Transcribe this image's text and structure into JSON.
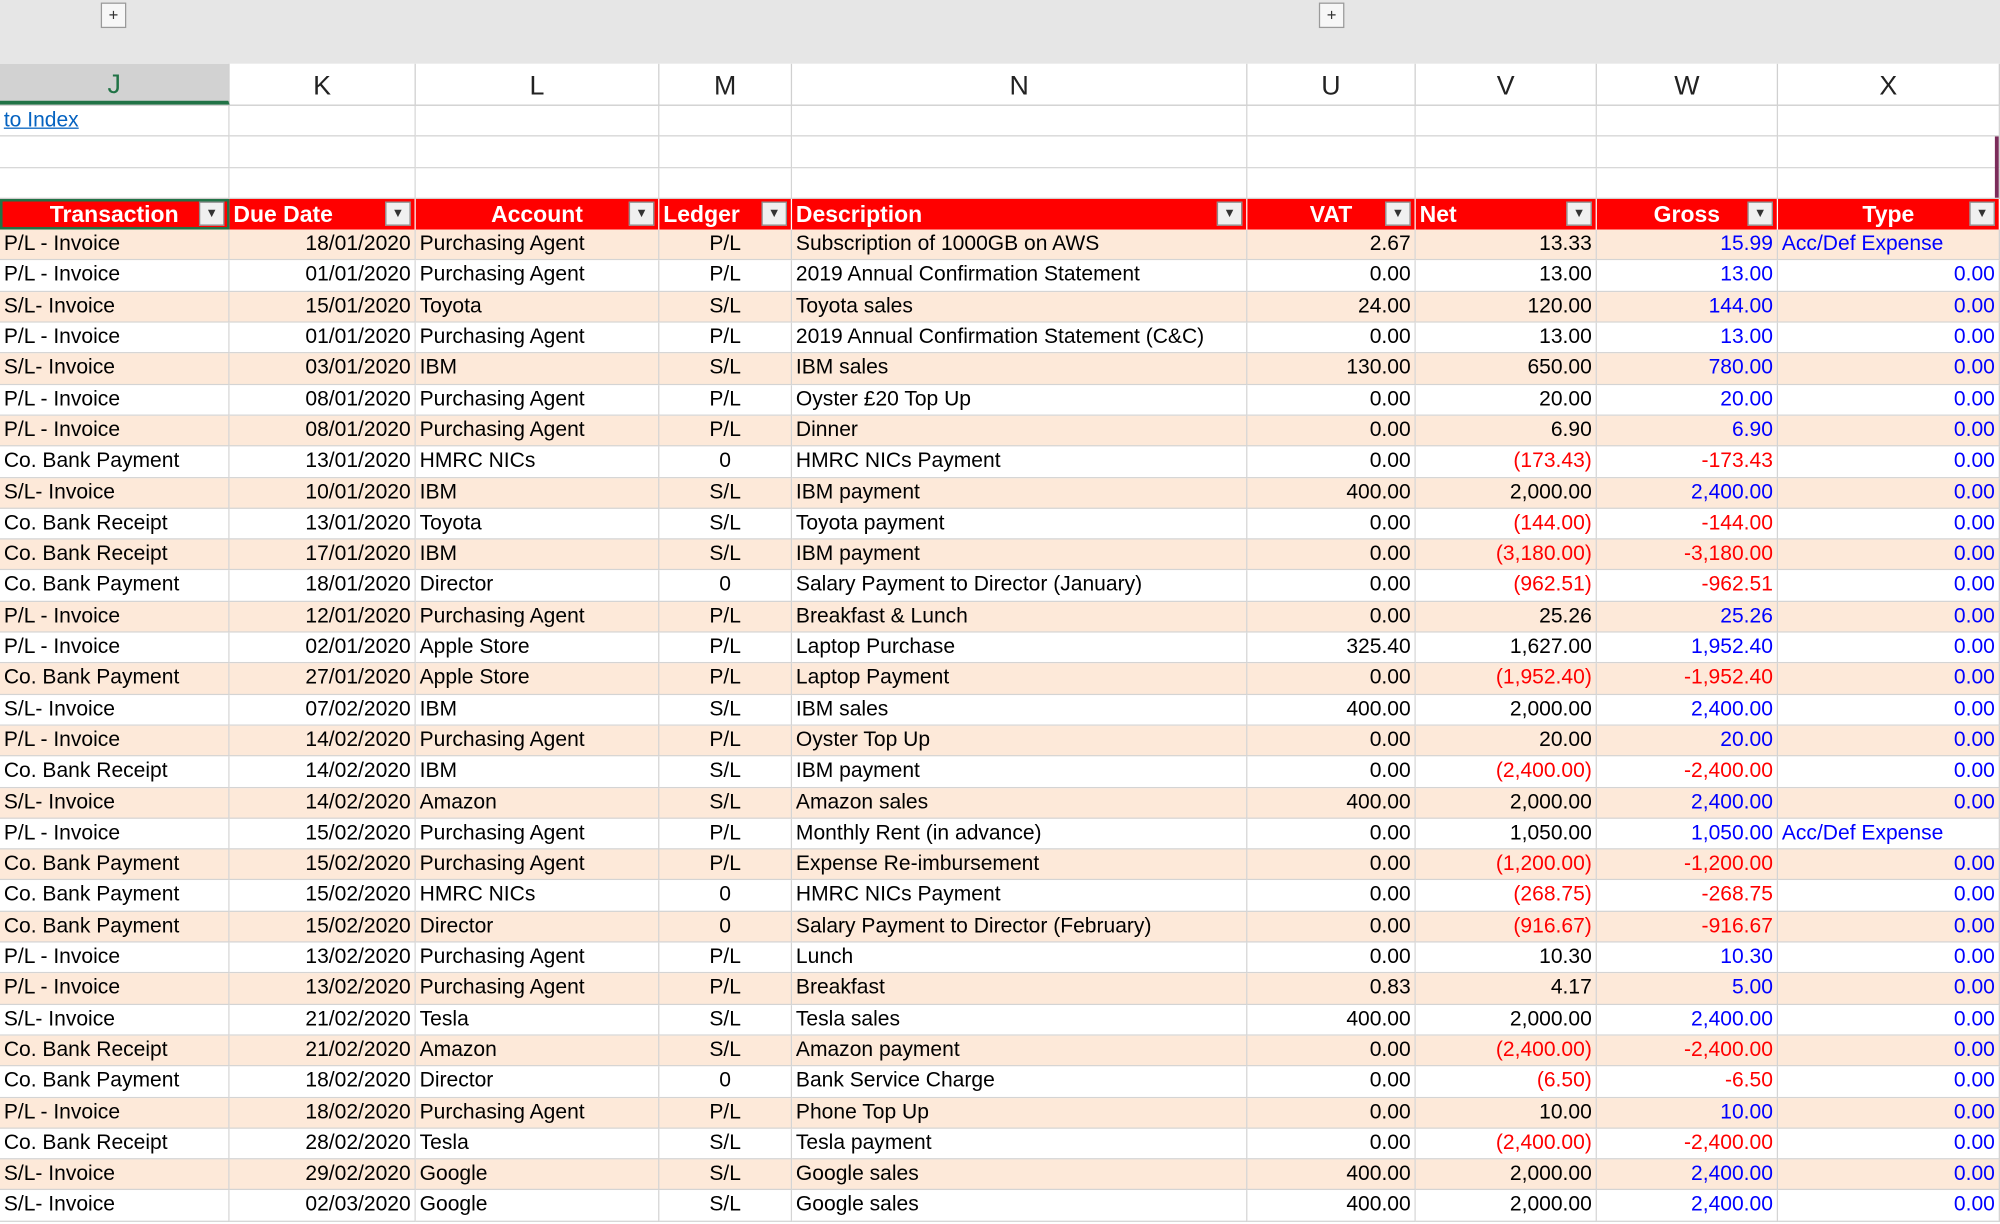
{
  "outline": {
    "group_button_1": "+",
    "group_button_2": "+"
  },
  "columns": [
    "J",
    "K",
    "L",
    "M",
    "N",
    "U",
    "V",
    "W",
    "X"
  ],
  "index_link": "to Index",
  "table": {
    "headers": [
      "Transaction",
      "Due Date",
      "Account",
      "Ledger",
      "Description",
      "VAT",
      "Net",
      "Gross",
      "Type"
    ],
    "filter_icon": "▼",
    "rows": [
      [
        "P/L - Invoice",
        "18/01/2020",
        "Purchasing Agent",
        "P/L",
        "Subscription of 1000GB on AWS",
        "2.67",
        "13.33",
        "15.99",
        "Acc/Def Expense"
      ],
      [
        "P/L - Invoice",
        "01/01/2020",
        "Purchasing Agent",
        "P/L",
        "2019 Annual Confirmation Statement",
        "0.00",
        "13.00",
        "13.00",
        "0.00"
      ],
      [
        "S/L- Invoice",
        "15/01/2020",
        "Toyota",
        "S/L",
        "Toyota sales",
        "24.00",
        "120.00",
        "144.00",
        "0.00"
      ],
      [
        "P/L - Invoice",
        "01/01/2020",
        "Purchasing Agent",
        "P/L",
        "2019 Annual Confirmation Statement (C&C)",
        "0.00",
        "13.00",
        "13.00",
        "0.00"
      ],
      [
        "S/L- Invoice",
        "03/01/2020",
        "IBM",
        "S/L",
        "IBM sales",
        "130.00",
        "650.00",
        "780.00",
        "0.00"
      ],
      [
        "P/L - Invoice",
        "08/01/2020",
        "Purchasing Agent",
        "P/L",
        "Oyster £20 Top Up",
        "0.00",
        "20.00",
        "20.00",
        "0.00"
      ],
      [
        "P/L - Invoice",
        "08/01/2020",
        "Purchasing Agent",
        "P/L",
        "Dinner",
        "0.00",
        "6.90",
        "6.90",
        "0.00"
      ],
      [
        "Co. Bank Payment",
        "13/01/2020",
        "HMRC NICs",
        "0",
        "HMRC NICs Payment",
        "0.00",
        "(173.43)",
        "-173.43",
        "0.00"
      ],
      [
        "S/L- Invoice",
        "10/01/2020",
        "IBM",
        "S/L",
        "IBM payment",
        "400.00",
        "2,000.00",
        "2,400.00",
        "0.00"
      ],
      [
        "Co. Bank Receipt",
        "13/01/2020",
        "Toyota",
        "S/L",
        "Toyota payment",
        "0.00",
        "(144.00)",
        "-144.00",
        "0.00"
      ],
      [
        "Co. Bank Receipt",
        "17/01/2020",
        "IBM",
        "S/L",
        "IBM payment",
        "0.00",
        "(3,180.00)",
        "-3,180.00",
        "0.00"
      ],
      [
        "Co. Bank Payment",
        "18/01/2020",
        "Director",
        "0",
        "Salary Payment to Director (January)",
        "0.00",
        "(962.51)",
        "-962.51",
        "0.00"
      ],
      [
        "P/L - Invoice",
        "12/01/2020",
        "Purchasing Agent",
        "P/L",
        "Breakfast & Lunch",
        "0.00",
        "25.26",
        "25.26",
        "0.00"
      ],
      [
        "P/L - Invoice",
        "02/01/2020",
        "Apple Store",
        "P/L",
        "Laptop Purchase",
        "325.40",
        "1,627.00",
        "1,952.40",
        "0.00"
      ],
      [
        "Co. Bank Payment",
        "27/01/2020",
        "Apple Store",
        "P/L",
        "Laptop Payment",
        "0.00",
        "(1,952.40)",
        "-1,952.40",
        "0.00"
      ],
      [
        "S/L- Invoice",
        "07/02/2020",
        "IBM",
        "S/L",
        "IBM sales",
        "400.00",
        "2,000.00",
        "2,400.00",
        "0.00"
      ],
      [
        "P/L - Invoice",
        "14/02/2020",
        "Purchasing Agent",
        "P/L",
        "Oyster Top Up",
        "0.00",
        "20.00",
        "20.00",
        "0.00"
      ],
      [
        "Co. Bank Receipt",
        "14/02/2020",
        "IBM",
        "S/L",
        "IBM payment",
        "0.00",
        "(2,400.00)",
        "-2,400.00",
        "0.00"
      ],
      [
        "S/L- Invoice",
        "14/02/2020",
        "Amazon",
        "S/L",
        "Amazon sales",
        "400.00",
        "2,000.00",
        "2,400.00",
        "0.00"
      ],
      [
        "P/L - Invoice",
        "15/02/2020",
        "Purchasing Agent",
        "P/L",
        "Monthly Rent (in advance)",
        "0.00",
        "1,050.00",
        "1,050.00",
        "Acc/Def Expense"
      ],
      [
        "Co. Bank Payment",
        "15/02/2020",
        "Purchasing Agent",
        "P/L",
        "Expense Re-imbursement",
        "0.00",
        "(1,200.00)",
        "-1,200.00",
        "0.00"
      ],
      [
        "Co. Bank Payment",
        "15/02/2020",
        "HMRC NICs",
        "0",
        "HMRC NICs Payment",
        "0.00",
        "(268.75)",
        "-268.75",
        "0.00"
      ],
      [
        "Co. Bank Payment",
        "15/02/2020",
        "Director",
        "0",
        "Salary Payment to Director (February)",
        "0.00",
        "(916.67)",
        "-916.67",
        "0.00"
      ],
      [
        "P/L - Invoice",
        "13/02/2020",
        "Purchasing Agent",
        "P/L",
        "Lunch",
        "0.00",
        "10.30",
        "10.30",
        "0.00"
      ],
      [
        "P/L - Invoice",
        "13/02/2020",
        "Purchasing Agent",
        "P/L",
        "Breakfast",
        "0.83",
        "4.17",
        "5.00",
        "0.00"
      ],
      [
        "S/L- Invoice",
        "21/02/2020",
        "Tesla",
        "S/L",
        "Tesla sales",
        "400.00",
        "2,000.00",
        "2,400.00",
        "0.00"
      ],
      [
        "Co. Bank Receipt",
        "21/02/2020",
        "Amazon",
        "S/L",
        "Amazon payment",
        "0.00",
        "(2,400.00)",
        "-2,400.00",
        "0.00"
      ],
      [
        "Co. Bank Payment",
        "18/02/2020",
        "Director",
        "0",
        "Bank Service Charge",
        "0.00",
        "(6.50)",
        "-6.50",
        "0.00"
      ],
      [
        "P/L - Invoice",
        "18/02/2020",
        "Purchasing Agent",
        "P/L",
        "Phone Top Up",
        "0.00",
        "10.00",
        "10.00",
        "0.00"
      ],
      [
        "Co. Bank Receipt",
        "28/02/2020",
        "Tesla",
        "S/L",
        "Tesla payment",
        "0.00",
        "(2,400.00)",
        "-2,400.00",
        "0.00"
      ],
      [
        "S/L- Invoice",
        "29/02/2020",
        "Google",
        "S/L",
        "Google sales",
        "400.00",
        "2,000.00",
        "2,400.00",
        "0.00"
      ],
      [
        "S/L- Invoice",
        "02/03/2020",
        "Google",
        "S/L",
        "Google sales",
        "400.00",
        "2,000.00",
        "2,400.00",
        "0.00"
      ]
    ]
  },
  "colors": {
    "header_bg": "#ff0000",
    "band_bg": "#fde9d9",
    "negative": "#ff0000",
    "gross": "#0000ff",
    "link": "#0563c1",
    "selected_col": "#217346"
  }
}
